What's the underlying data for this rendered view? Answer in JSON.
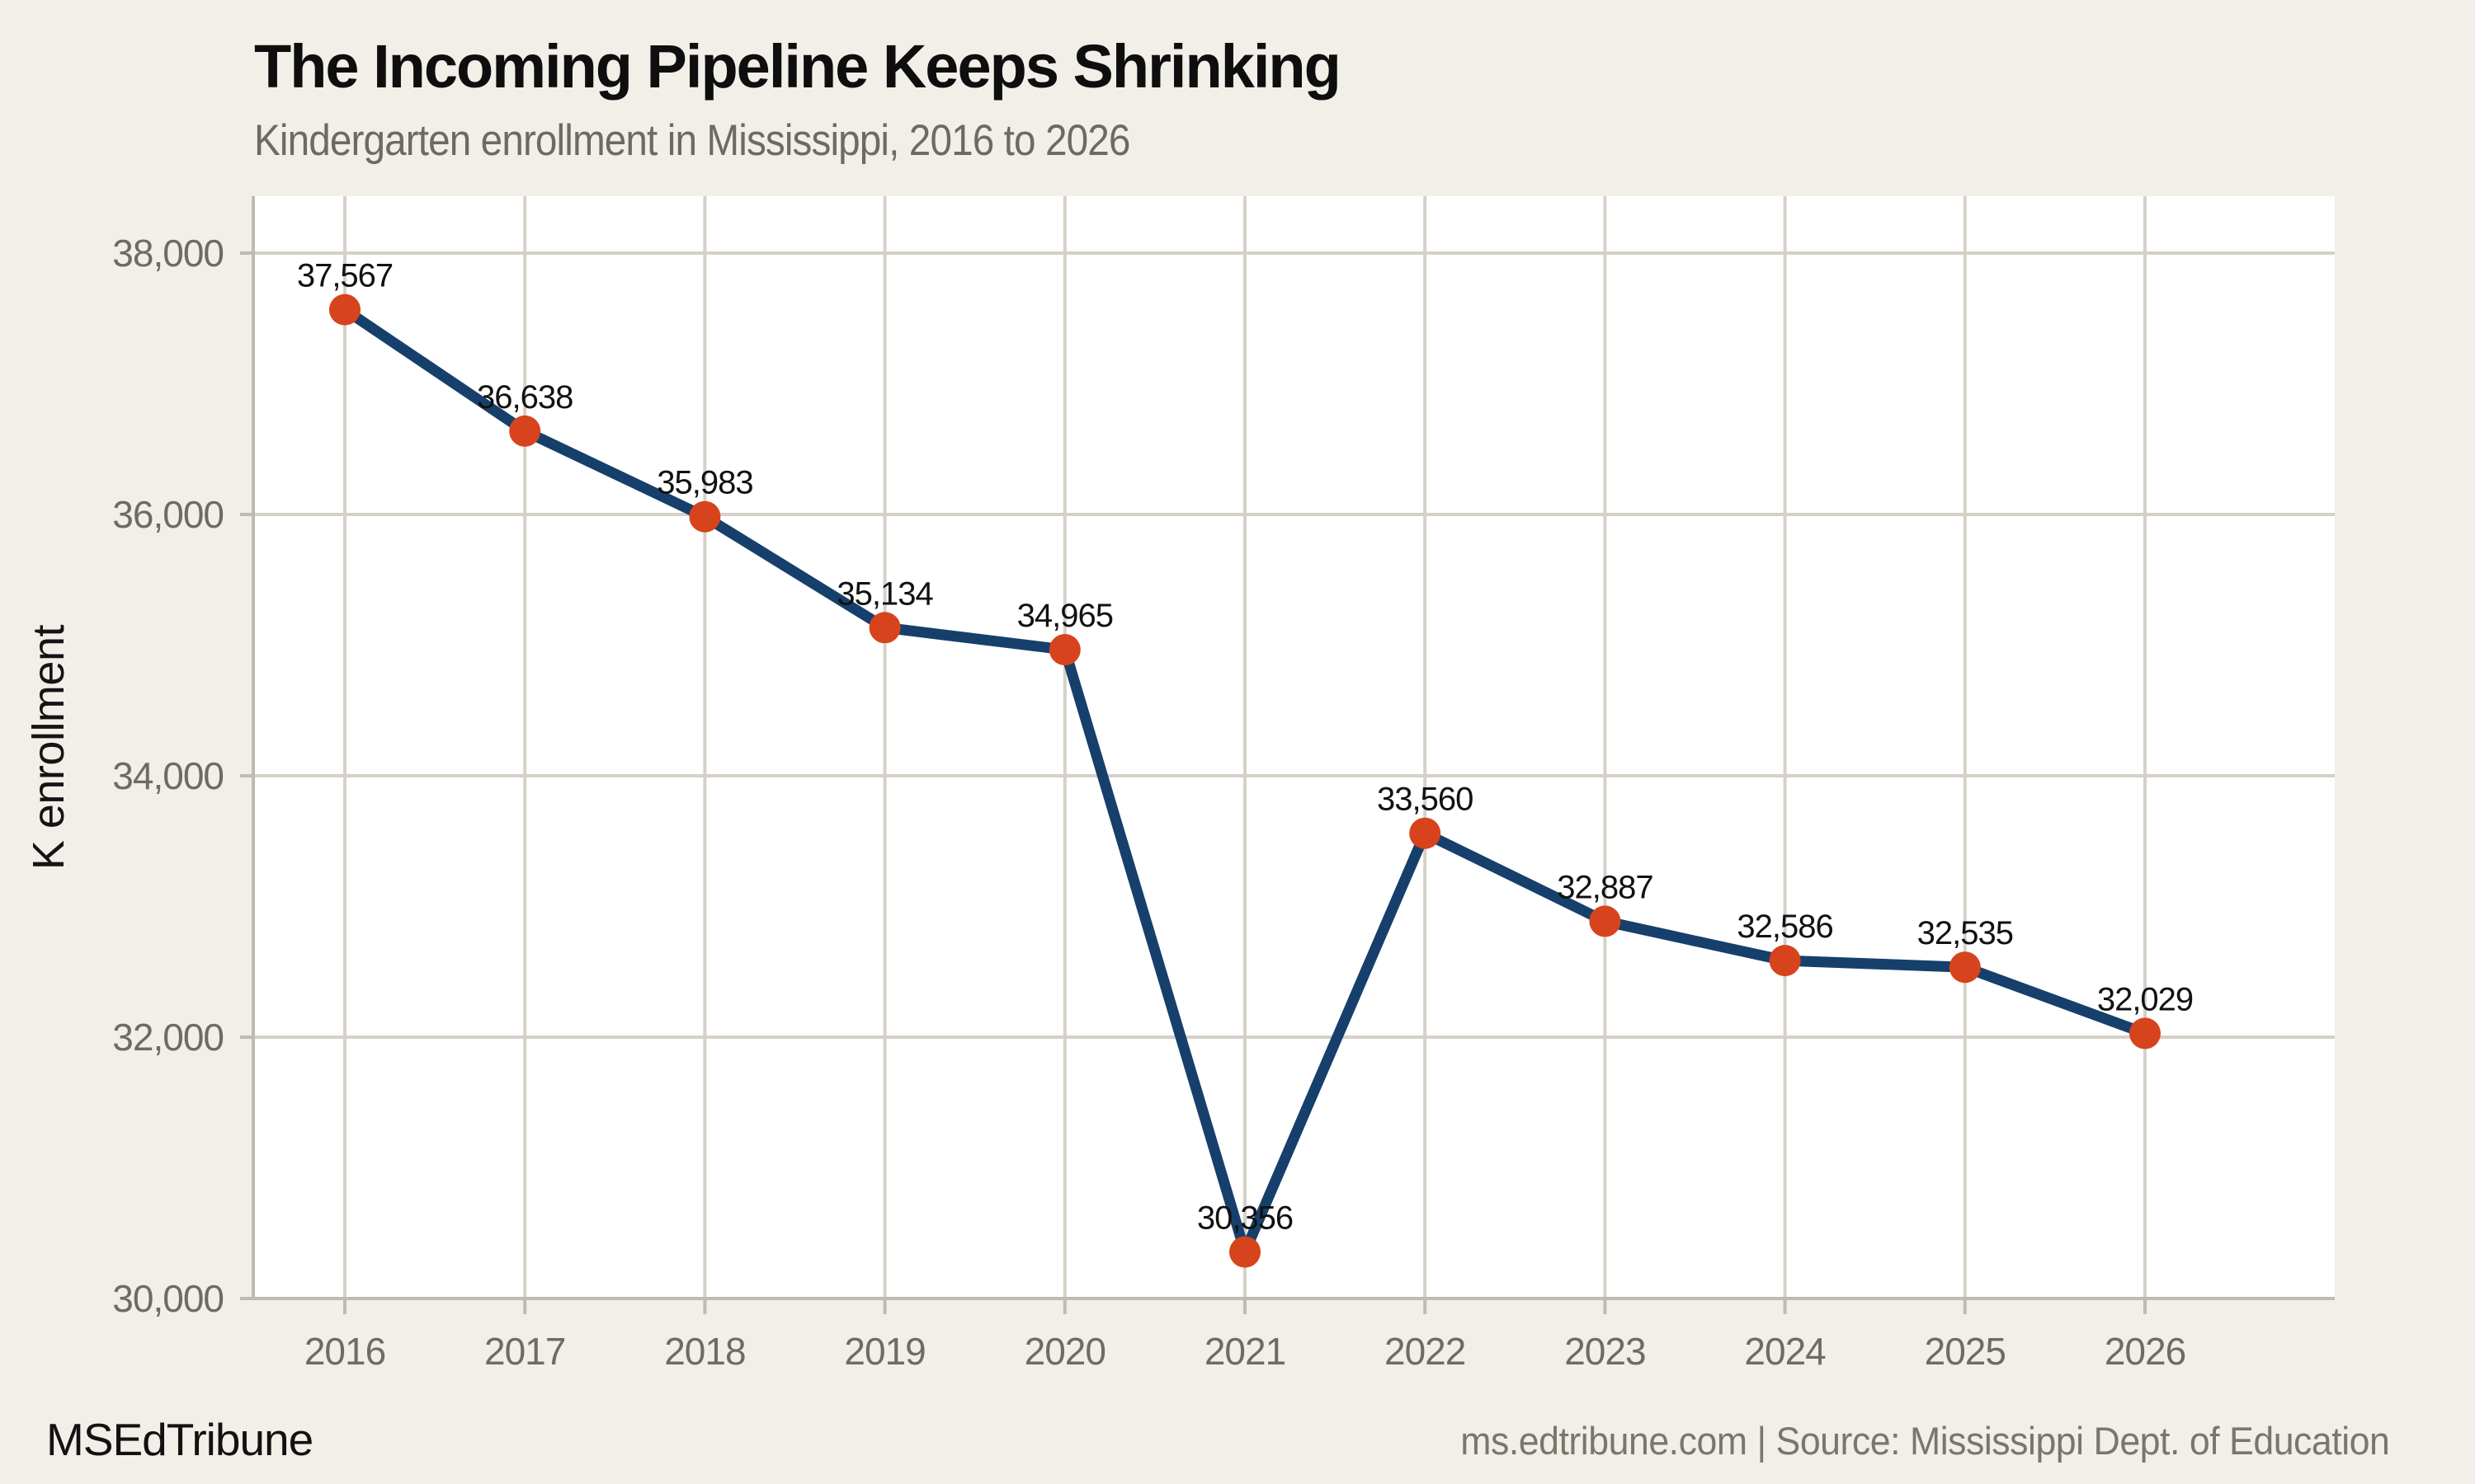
{
  "chart_data": {
    "type": "line",
    "title": "The Incoming Pipeline Keeps Shrinking",
    "subtitle": "Kindergarten enrollment in Mississippi, 2016 to 2026",
    "ylabel": "K enrollment",
    "xlabel": "",
    "categories": [
      "2016",
      "2017",
      "2018",
      "2019",
      "2020",
      "2021",
      "2022",
      "2023",
      "2024",
      "2025",
      "2026"
    ],
    "values": [
      37567,
      36638,
      35983,
      35134,
      34965,
      30356,
      33560,
      32887,
      32586,
      32535,
      32029
    ],
    "point_labels": [
      "37,567",
      "36,638",
      "35,983",
      "35,134",
      "34,965",
      "30,356",
      "33,560",
      "32,887",
      "32,586",
      "32,535",
      "32,029"
    ],
    "y_ticks": [
      30000,
      32000,
      34000,
      36000,
      38000
    ],
    "y_tick_labels": [
      "30,000",
      "32,000",
      "34,000",
      "36,000",
      "38,000"
    ],
    "ylim": [
      30000,
      38440
    ],
    "grid": true,
    "legend": false,
    "colors": {
      "line": "#16406b",
      "point": "#d7431c",
      "background": "#f2efe8",
      "plot_background": "#ffffff",
      "gridline": "#d5d1c8",
      "axis": "#bfbbb1",
      "tick_text": "#6f6b64",
      "data_label_text": "#111111",
      "title_text": "#0e0e0e",
      "subtitle_text": "#6e6a63",
      "source_text": "#7b766d"
    }
  },
  "footer": {
    "brand": "MSEdTribune",
    "source": "ms.edtribune.com | Source: Mississippi Dept. of Education"
  }
}
